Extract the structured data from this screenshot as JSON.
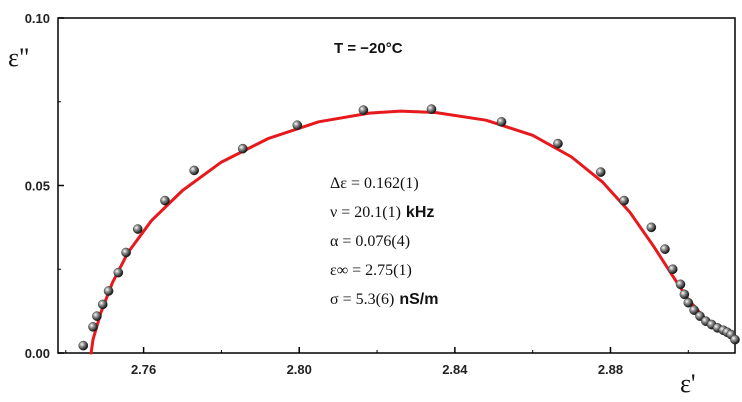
{
  "chart_data": {
    "type": "scatter",
    "title": "",
    "xlabel": "ε'",
    "ylabel": "ε\"",
    "xlim": [
      2.738,
      2.912
    ],
    "ylim": [
      0.0,
      0.1
    ],
    "x_ticks": [
      "2.76",
      "2.80",
      "2.84",
      "2.88"
    ],
    "x_tick_values": [
      2.76,
      2.8,
      2.84,
      2.88
    ],
    "y_ticks": [
      "0.00",
      "0.05",
      "0.10"
    ],
    "y_tick_values": [
      0.0,
      0.05,
      0.1
    ],
    "grid": false,
    "annotation": "T = −20°C",
    "parameters": [
      {
        "value": "Δε = 0.162(1)",
        "unit": ""
      },
      {
        "value": "ν = 20.1(1)",
        "unit": "kHz"
      },
      {
        "value": "α = 0.076(4)",
        "unit": ""
      },
      {
        "value": "ε∞ = 2.75(1)",
        "unit": ""
      },
      {
        "value": "σ = 5.3(6)",
        "unit": "nS/m"
      }
    ],
    "series": [
      {
        "kind": "points",
        "color": "#333333",
        "points": [
          [
            2.7445,
            0.0022
          ],
          [
            2.747,
            0.0078
          ],
          [
            2.748,
            0.011
          ],
          [
            2.7495,
            0.0145
          ],
          [
            2.751,
            0.0185
          ],
          [
            2.7535,
            0.024
          ],
          [
            2.7555,
            0.03
          ],
          [
            2.7585,
            0.037
          ],
          [
            2.7655,
            0.0455
          ],
          [
            2.773,
            0.0545
          ],
          [
            2.7855,
            0.061
          ],
          [
            2.7995,
            0.068
          ],
          [
            2.8165,
            0.0725
          ],
          [
            2.834,
            0.0728
          ],
          [
            2.852,
            0.069
          ],
          [
            2.8665,
            0.0625
          ],
          [
            2.8775,
            0.054
          ],
          [
            2.8835,
            0.0455
          ],
          [
            2.8905,
            0.0375
          ],
          [
            2.894,
            0.031
          ],
          [
            2.896,
            0.025
          ],
          [
            2.898,
            0.0205
          ],
          [
            2.899,
            0.0175
          ],
          [
            2.9,
            0.015
          ],
          [
            2.9015,
            0.0128
          ],
          [
            2.903,
            0.011
          ],
          [
            2.9045,
            0.0095
          ],
          [
            2.906,
            0.0085
          ],
          [
            2.9075,
            0.0075
          ],
          [
            2.909,
            0.0068
          ],
          [
            2.91,
            0.0062
          ],
          [
            2.911,
            0.0055
          ],
          [
            2.912,
            0.004
          ]
        ]
      },
      {
        "kind": "fit-curve",
        "color": "#e8191c",
        "points": [
          [
            2.7465,
            0.0
          ],
          [
            2.747,
            0.004
          ],
          [
            2.749,
            0.012
          ],
          [
            2.752,
            0.021
          ],
          [
            2.756,
            0.03
          ],
          [
            2.762,
            0.0395
          ],
          [
            2.77,
            0.0485
          ],
          [
            2.78,
            0.057
          ],
          [
            2.792,
            0.064
          ],
          [
            2.805,
            0.069
          ],
          [
            2.818,
            0.0716
          ],
          [
            2.826,
            0.0722
          ],
          [
            2.835,
            0.0718
          ],
          [
            2.848,
            0.0695
          ],
          [
            2.86,
            0.065
          ],
          [
            2.87,
            0.0585
          ],
          [
            2.878,
            0.051
          ],
          [
            2.885,
            0.042
          ],
          [
            2.891,
            0.032
          ],
          [
            2.896,
            0.023
          ],
          [
            2.9,
            0.016
          ],
          [
            2.903,
            0.012
          ],
          [
            2.9055,
            0.0085
          ],
          [
            2.906,
            0.0075
          ]
        ]
      }
    ]
  }
}
